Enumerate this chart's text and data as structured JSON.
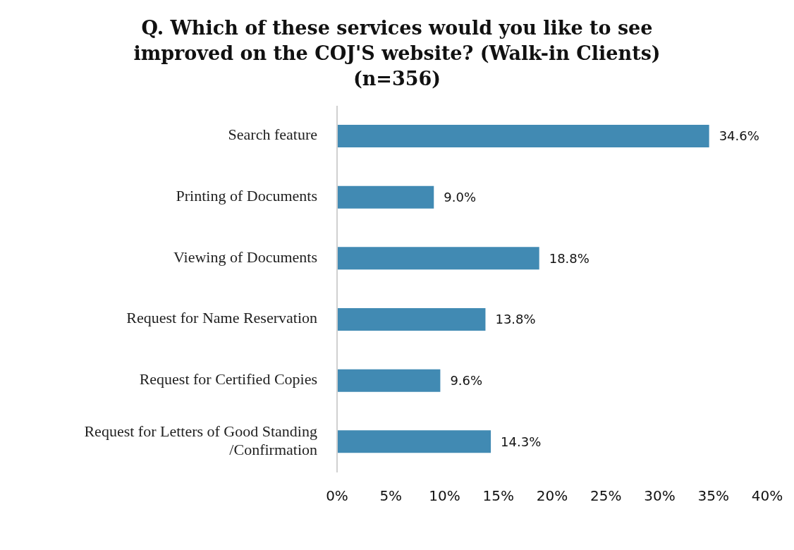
{
  "chart_data": {
    "type": "bar",
    "orientation": "horizontal",
    "title": "Q. Which of these services would you like to see improved on the COJ'S website? (Walk-in Clients) (n=356)",
    "categories": [
      "Search feature",
      "Printing of Documents",
      "Viewing of Documents",
      "Request for Name Reservation",
      "Request for Certified Copies",
      "Request for Letters of Good Standing /Confirmation"
    ],
    "values": [
      34.6,
      9.0,
      18.8,
      13.8,
      9.6,
      14.3
    ],
    "value_labels": [
      "34.6%",
      "9.0%",
      "18.8%",
      "13.8%",
      "9.6%",
      "14.3%"
    ],
    "color": "#418ab3",
    "xlim": [
      0,
      40
    ],
    "xticks": [
      {
        "value": 0,
        "label": "0%"
      },
      {
        "value": 5,
        "label": "5%"
      },
      {
        "value": 10,
        "label": "10%"
      },
      {
        "value": 15,
        "label": "15%"
      },
      {
        "value": 20,
        "label": "20%"
      },
      {
        "value": 25,
        "label": "25%"
      },
      {
        "value": 30,
        "label": "30%"
      },
      {
        "value": 35,
        "label": "35%"
      },
      {
        "value": 40,
        "label": "40%"
      }
    ],
    "grid": false,
    "legend": false
  }
}
